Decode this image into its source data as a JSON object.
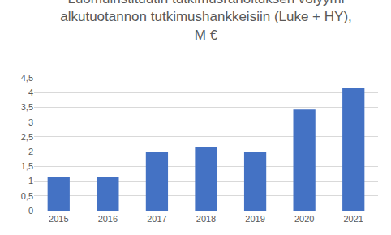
{
  "chart_data": {
    "type": "bar",
    "title": "Luomuinstituutin tutkimusrahoituksen volyymi\nalkutuotannon tutkimushankkeisiin (Luke + HY),\nM €",
    "categories": [
      "2015",
      "2016",
      "2017",
      "2018",
      "2019",
      "2020",
      "2021"
    ],
    "values": [
      1.15,
      1.15,
      2.0,
      2.17,
      2.0,
      3.42,
      4.17
    ],
    "color": "#4472c4",
    "ylim": [
      0,
      4.5
    ],
    "yticks": [
      0,
      {
        "value": 0.5,
        "label": "0,5"
      },
      1,
      {
        "value": 1.5,
        "label": "1,5"
      },
      2,
      {
        "value": 2.5,
        "label": "2,5"
      },
      3,
      {
        "value": 3.5,
        "label": "3,5"
      },
      4,
      {
        "value": 4.5,
        "label": "4,5"
      }
    ],
    "grid": true
  }
}
